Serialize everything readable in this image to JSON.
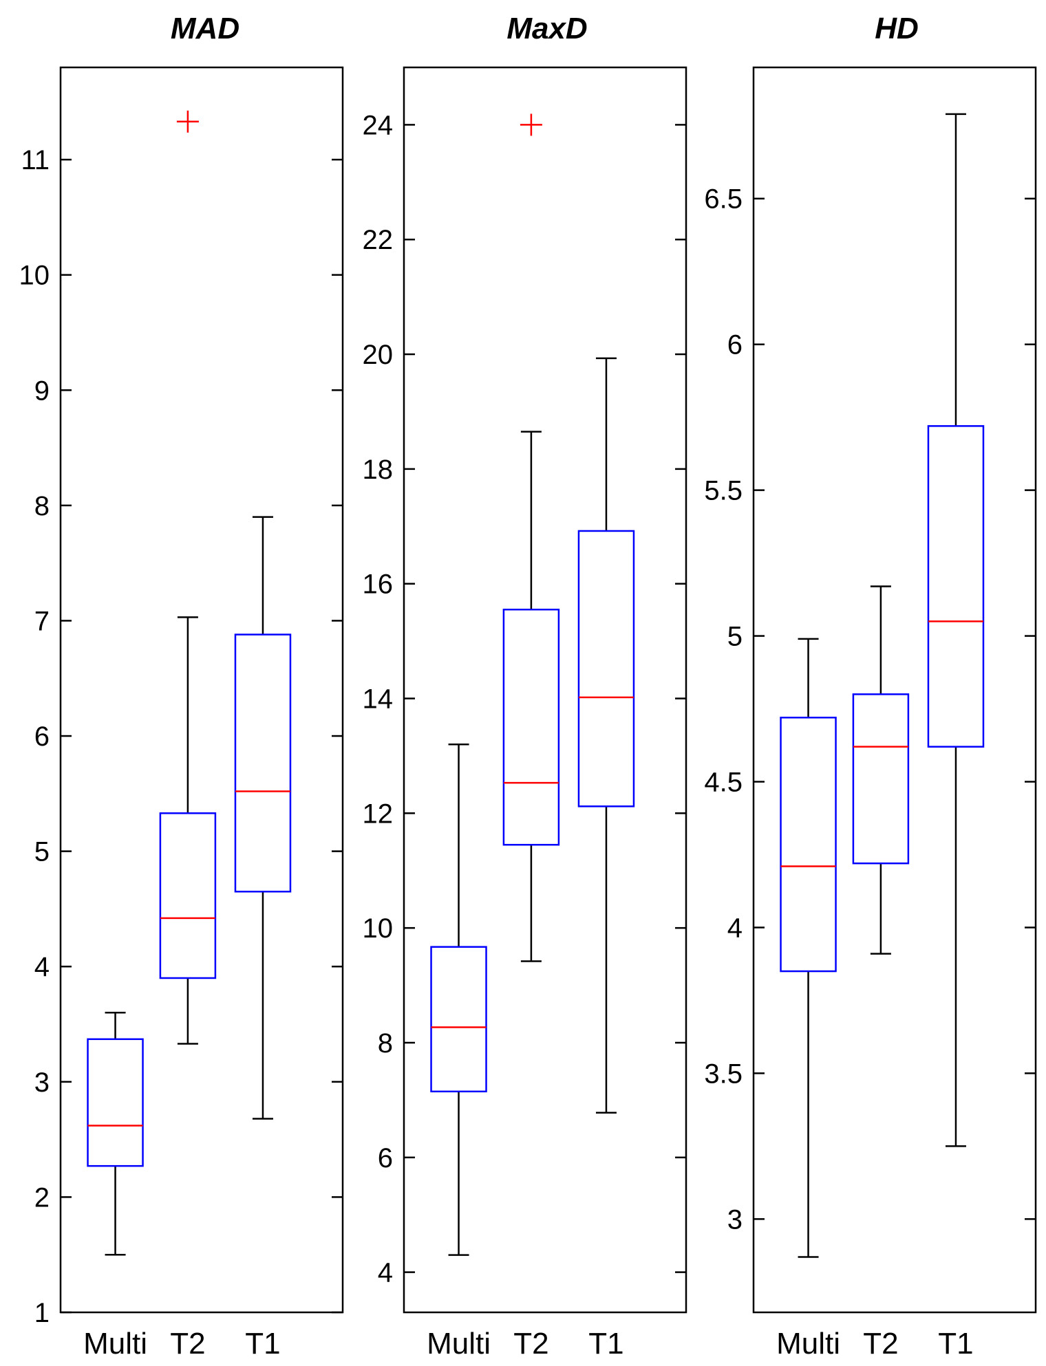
{
  "colors": {
    "box": "#0000ff",
    "median": "#ff0000",
    "outlier": "#ff0000",
    "whisker": "#000000",
    "axes": "#000000"
  },
  "chart_data": [
    {
      "type": "box",
      "title": "MAD",
      "xlabel": "",
      "ylabel": "",
      "categories": [
        "Multi",
        "T2",
        "T1"
      ],
      "ylim": [
        1,
        11.8
      ],
      "yticks": [
        1,
        2,
        3,
        4,
        5,
        6,
        7,
        8,
        9,
        10,
        11
      ],
      "boxes": [
        {
          "category": "Multi",
          "whisker_low": 1.5,
          "q1": 2.27,
          "median": 2.62,
          "q3": 3.37,
          "whisker_high": 3.6,
          "outliers": []
        },
        {
          "category": "T2",
          "whisker_low": 3.33,
          "q1": 3.9,
          "median": 4.42,
          "q3": 5.33,
          "whisker_high": 7.03,
          "outliers": [
            11.33
          ]
        },
        {
          "category": "T1",
          "whisker_low": 2.68,
          "q1": 4.65,
          "median": 5.52,
          "q3": 6.88,
          "whisker_high": 7.9,
          "outliers": []
        }
      ],
      "grid": false
    },
    {
      "type": "box",
      "title": "MaxD",
      "xlabel": "",
      "ylabel": "",
      "categories": [
        "Multi",
        "T2",
        "T1"
      ],
      "ylim": [
        3.3,
        25
      ],
      "yticks": [
        4,
        6,
        8,
        10,
        12,
        14,
        16,
        18,
        20,
        22,
        24
      ],
      "boxes": [
        {
          "category": "Multi",
          "whisker_low": 4.3,
          "q1": 7.15,
          "median": 8.27,
          "q3": 9.67,
          "whisker_high": 13.2,
          "outliers": []
        },
        {
          "category": "T2",
          "whisker_low": 9.42,
          "q1": 11.45,
          "median": 12.53,
          "q3": 15.55,
          "whisker_high": 18.65,
          "outliers": [
            24
          ]
        },
        {
          "category": "T1",
          "whisker_low": 6.78,
          "q1": 12.12,
          "median": 14.02,
          "q3": 16.92,
          "whisker_high": 19.93,
          "outliers": []
        }
      ],
      "grid": false
    },
    {
      "type": "box",
      "title": "HD",
      "xlabel": "",
      "ylabel": "",
      "categories": [
        "Multi",
        "T2",
        "T1"
      ],
      "ylim": [
        2.68,
        6.95
      ],
      "yticks": [
        3,
        3.5,
        4,
        4.5,
        5,
        5.5,
        6,
        6.5
      ],
      "boxes": [
        {
          "category": "Multi",
          "whisker_low": 2.87,
          "q1": 3.85,
          "median": 4.21,
          "q3": 4.72,
          "whisker_high": 4.99,
          "outliers": []
        },
        {
          "category": "T2",
          "whisker_low": 3.91,
          "q1": 4.22,
          "median": 4.62,
          "q3": 4.8,
          "whisker_high": 5.17,
          "outliers": []
        },
        {
          "category": "T1",
          "whisker_low": 3.25,
          "q1": 4.62,
          "median": 5.05,
          "q3": 5.72,
          "whisker_high": 6.79,
          "outliers": []
        }
      ],
      "grid": false
    }
  ]
}
